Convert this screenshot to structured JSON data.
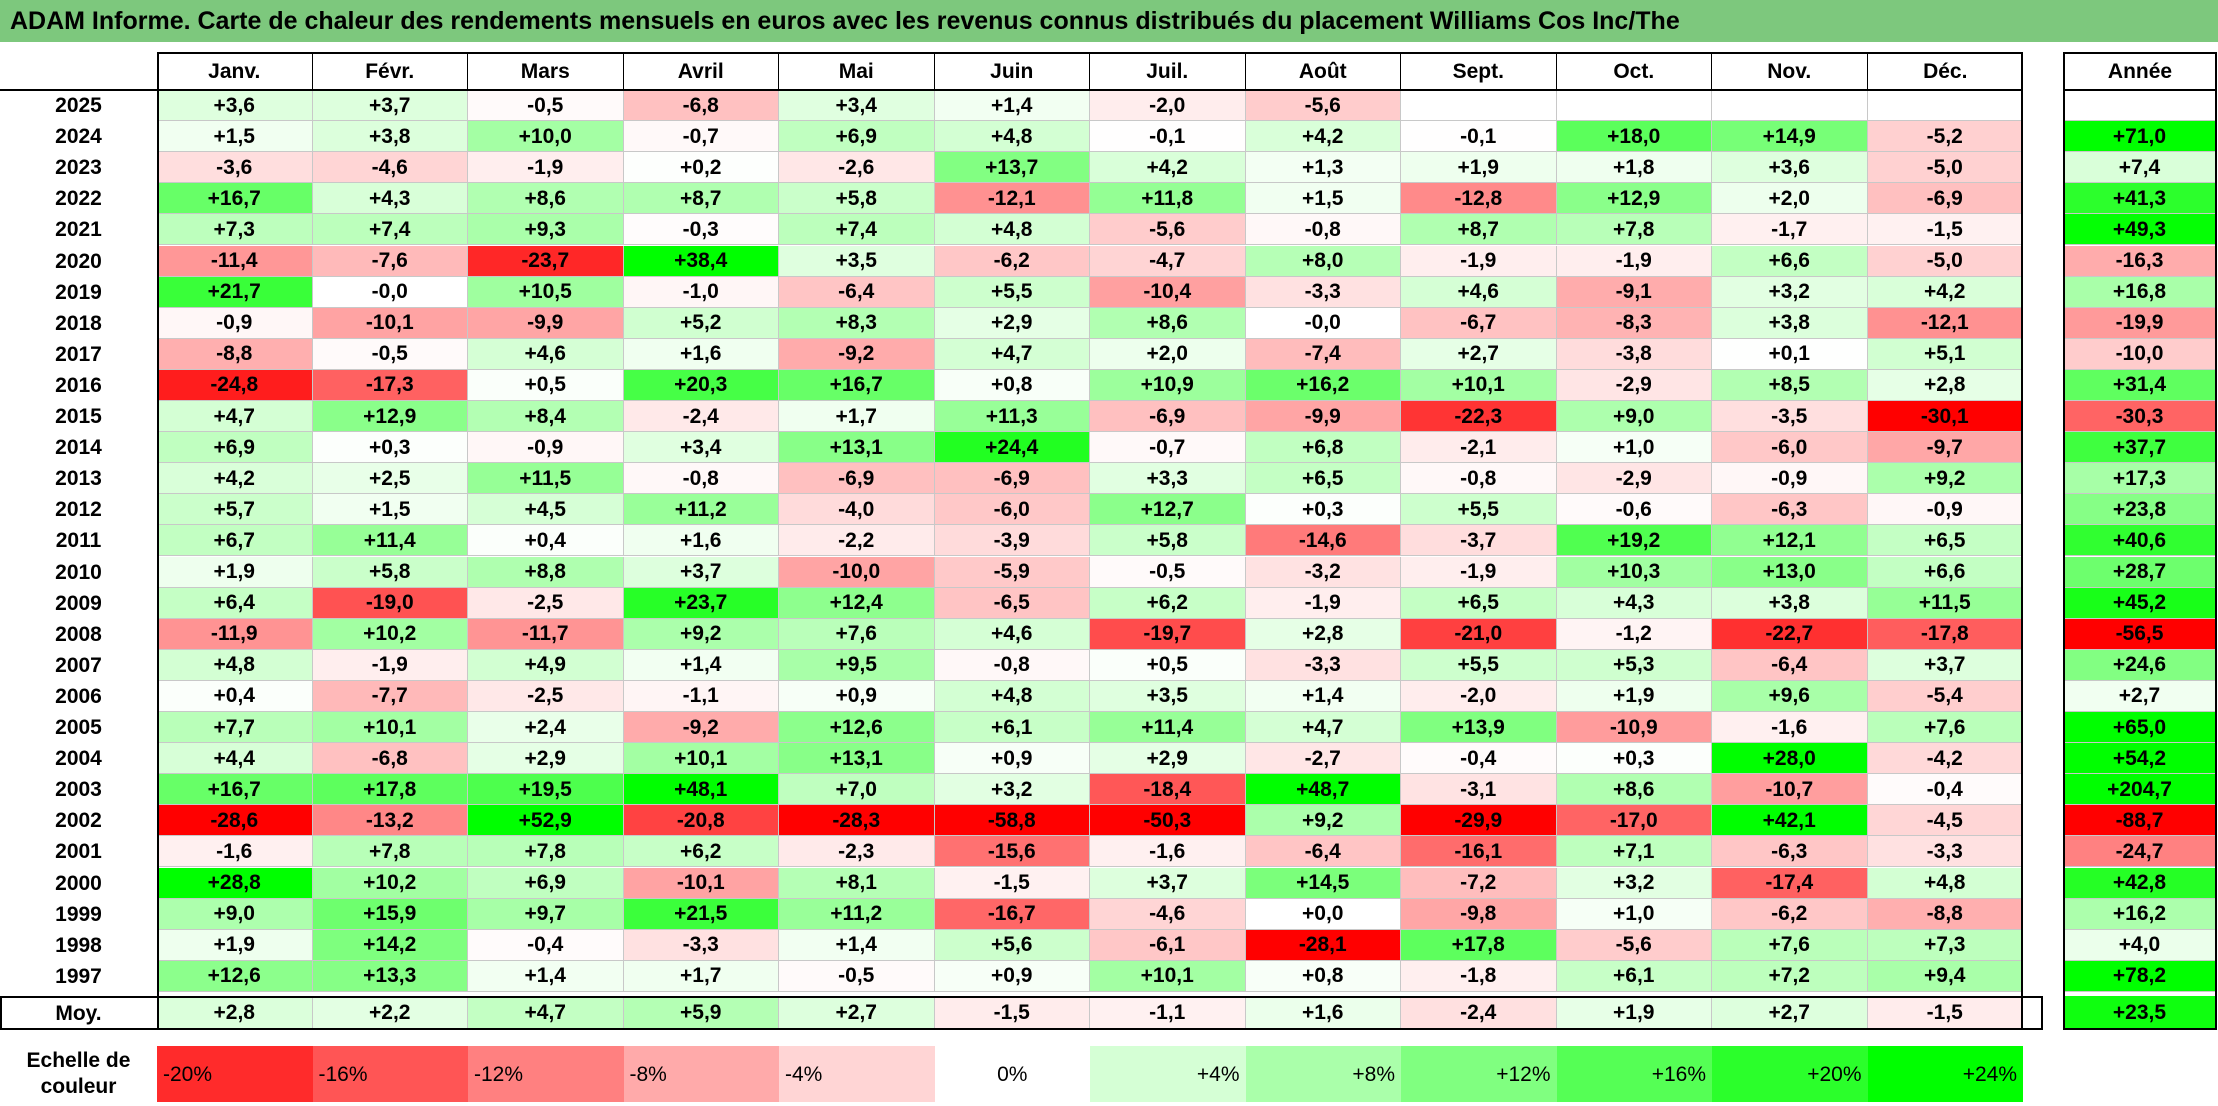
{
  "title": "ADAM Informe. Carte de chaleur des rendements mensuels en euros avec les revenus connus distribués du placement Williams Cos Inc/The",
  "colors": {
    "title_bg": "#7dc87d",
    "red": "#ff0000",
    "green": "#00ff00",
    "white": "#ffffff"
  },
  "chart_data": {
    "type": "heatmap",
    "columns": [
      "Janv.",
      "Févr.",
      "Mars",
      "Avril",
      "Mai",
      "Juin",
      "Juil.",
      "Août",
      "Sept.",
      "Oct.",
      "Nov.",
      "Déc."
    ],
    "year_header": "Année",
    "rows": [
      {
        "year": "2025",
        "values": [
          "+3,6",
          "+3,7",
          "-0,5",
          "-6,8",
          "+3,4",
          "+1,4",
          "-2,0",
          "-5,6",
          "",
          "",
          "",
          ""
        ],
        "annual": ""
      },
      {
        "year": "2024",
        "values": [
          "+1,5",
          "+3,8",
          "+10,0",
          "-0,7",
          "+6,9",
          "+4,8",
          "-0,1",
          "+4,2",
          "-0,1",
          "+18,0",
          "+14,9",
          "-5,2"
        ],
        "annual": "+71,0"
      },
      {
        "year": "2023",
        "values": [
          "-3,6",
          "-4,6",
          "-1,9",
          "+0,2",
          "-2,6",
          "+13,7",
          "+4,2",
          "+1,3",
          "+1,9",
          "+1,8",
          "+3,6",
          "-5,0"
        ],
        "annual": "+7,4"
      },
      {
        "year": "2022",
        "values": [
          "+16,7",
          "+4,3",
          "+8,6",
          "+8,7",
          "+5,8",
          "-12,1",
          "+11,8",
          "+1,5",
          "-12,8",
          "+12,9",
          "+2,0",
          "-6,9"
        ],
        "annual": "+41,3"
      },
      {
        "year": "2021",
        "values": [
          "+7,3",
          "+7,4",
          "+9,3",
          "-0,3",
          "+7,4",
          "+4,8",
          "-5,6",
          "-0,8",
          "+8,7",
          "+7,8",
          "-1,7",
          "-1,5"
        ],
        "annual": "+49,3"
      },
      {
        "year": "2020",
        "values": [
          "-11,4",
          "-7,6",
          "-23,7",
          "+38,4",
          "+3,5",
          "-6,2",
          "-4,7",
          "+8,0",
          "-1,9",
          "-1,9",
          "+6,6",
          "-5,0"
        ],
        "annual": "-16,3"
      },
      {
        "year": "2019",
        "values": [
          "+21,7",
          "-0,0",
          "+10,5",
          "-1,0",
          "-6,4",
          "+5,5",
          "-10,4",
          "-3,3",
          "+4,6",
          "-9,1",
          "+3,2",
          "+4,2"
        ],
        "annual": "+16,8"
      },
      {
        "year": "2018",
        "values": [
          "-0,9",
          "-10,1",
          "-9,9",
          "+5,2",
          "+8,3",
          "+2,9",
          "+8,6",
          "-0,0",
          "-6,7",
          "-8,3",
          "+3,8",
          "-12,1"
        ],
        "annual": "-19,9"
      },
      {
        "year": "2017",
        "values": [
          "-8,8",
          "-0,5",
          "+4,6",
          "+1,6",
          "-9,2",
          "+4,7",
          "+2,0",
          "-7,4",
          "+2,7",
          "-3,8",
          "+0,1",
          "+5,1"
        ],
        "annual": "-10,0"
      },
      {
        "year": "2016",
        "values": [
          "-24,8",
          "-17,3",
          "+0,5",
          "+20,3",
          "+16,7",
          "+0,8",
          "+10,9",
          "+16,2",
          "+10,1",
          "-2,9",
          "+8,5",
          "+2,8"
        ],
        "annual": "+31,4"
      },
      {
        "year": "2015",
        "values": [
          "+4,7",
          "+12,9",
          "+8,4",
          "-2,4",
          "+1,7",
          "+11,3",
          "-6,9",
          "-9,9",
          "-22,3",
          "+9,0",
          "-3,5",
          "-30,1"
        ],
        "annual": "-30,3"
      },
      {
        "year": "2014",
        "values": [
          "+6,9",
          "+0,3",
          "-0,9",
          "+3,4",
          "+13,1",
          "+24,4",
          "-0,7",
          "+6,8",
          "-2,1",
          "+1,0",
          "-6,0",
          "-9,7"
        ],
        "annual": "+37,7"
      },
      {
        "year": "2013",
        "values": [
          "+4,2",
          "+2,5",
          "+11,5",
          "-0,8",
          "-6,9",
          "-6,9",
          "+3,3",
          "+6,5",
          "-0,8",
          "-2,9",
          "-0,9",
          "+9,2"
        ],
        "annual": "+17,3"
      },
      {
        "year": "2012",
        "values": [
          "+5,7",
          "+1,5",
          "+4,5",
          "+11,2",
          "-4,0",
          "-6,0",
          "+12,7",
          "+0,3",
          "+5,5",
          "-0,6",
          "-6,3",
          "-0,9"
        ],
        "annual": "+23,8"
      },
      {
        "year": "2011",
        "values": [
          "+6,7",
          "+11,4",
          "+0,4",
          "+1,6",
          "-2,2",
          "-3,9",
          "+5,8",
          "-14,6",
          "-3,7",
          "+19,2",
          "+12,1",
          "+6,5"
        ],
        "annual": "+40,6"
      },
      {
        "year": "2010",
        "values": [
          "+1,9",
          "+5,8",
          "+8,8",
          "+3,7",
          "-10,0",
          "-5,9",
          "-0,5",
          "-3,2",
          "-1,9",
          "+10,3",
          "+13,0",
          "+6,6"
        ],
        "annual": "+28,7"
      },
      {
        "year": "2009",
        "values": [
          "+6,4",
          "-19,0",
          "-2,5",
          "+23,7",
          "+12,4",
          "-6,5",
          "+6,2",
          "-1,9",
          "+6,5",
          "+4,3",
          "+3,8",
          "+11,5"
        ],
        "annual": "+45,2"
      },
      {
        "year": "2008",
        "values": [
          "-11,9",
          "+10,2",
          "-11,7",
          "+9,2",
          "+7,6",
          "+4,6",
          "-19,7",
          "+2,8",
          "-21,0",
          "-1,2",
          "-22,7",
          "-17,8"
        ],
        "annual": "-56,5"
      },
      {
        "year": "2007",
        "values": [
          "+4,8",
          "-1,9",
          "+4,9",
          "+1,4",
          "+9,5",
          "-0,8",
          "+0,5",
          "-3,3",
          "+5,5",
          "+5,3",
          "-6,4",
          "+3,7"
        ],
        "annual": "+24,6"
      },
      {
        "year": "2006",
        "values": [
          "+0,4",
          "-7,7",
          "-2,5",
          "-1,1",
          "+0,9",
          "+4,8",
          "+3,5",
          "+1,4",
          "-2,0",
          "+1,9",
          "+9,6",
          "-5,4"
        ],
        "annual": "+2,7"
      },
      {
        "year": "2005",
        "values": [
          "+7,7",
          "+10,1",
          "+2,4",
          "-9,2",
          "+12,6",
          "+6,1",
          "+11,4",
          "+4,7",
          "+13,9",
          "-10,9",
          "-1,6",
          "+7,6"
        ],
        "annual": "+65,0"
      },
      {
        "year": "2004",
        "values": [
          "+4,4",
          "-6,8",
          "+2,9",
          "+10,1",
          "+13,1",
          "+0,9",
          "+2,9",
          "-2,7",
          "-0,4",
          "+0,3",
          "+28,0",
          "-4,2"
        ],
        "annual": "+54,2"
      },
      {
        "year": "2003",
        "values": [
          "+16,7",
          "+17,8",
          "+19,5",
          "+48,1",
          "+7,0",
          "+3,2",
          "-18,4",
          "+48,7",
          "-3,1",
          "+8,6",
          "-10,7",
          "-0,4"
        ],
        "annual": "+204,7"
      },
      {
        "year": "2002",
        "values": [
          "-28,6",
          "-13,2",
          "+52,9",
          "-20,8",
          "-28,3",
          "-58,8",
          "-50,3",
          "+9,2",
          "-29,9",
          "-17,0",
          "+42,1",
          "-4,5"
        ],
        "annual": "-88,7"
      },
      {
        "year": "2001",
        "values": [
          "-1,6",
          "+7,8",
          "+7,8",
          "+6,2",
          "-2,3",
          "-15,6",
          "-1,6",
          "-6,4",
          "-16,1",
          "+7,1",
          "-6,3",
          "-3,3"
        ],
        "annual": "-24,7"
      },
      {
        "year": "2000",
        "values": [
          "+28,8",
          "+10,2",
          "+6,9",
          "-10,1",
          "+8,1",
          "-1,5",
          "+3,7",
          "+14,5",
          "-7,2",
          "+3,2",
          "-17,4",
          "+4,8"
        ],
        "annual": "+42,8"
      },
      {
        "year": "1999",
        "values": [
          "+9,0",
          "+15,9",
          "+9,7",
          "+21,5",
          "+11,2",
          "-16,7",
          "-4,6",
          "+0,0",
          "-9,8",
          "+1,0",
          "-6,2",
          "-8,8"
        ],
        "annual": "+16,2"
      },
      {
        "year": "1998",
        "values": [
          "+1,9",
          "+14,2",
          "-0,4",
          "-3,3",
          "+1,4",
          "+5,6",
          "-6,1",
          "-28,1",
          "+17,8",
          "-5,6",
          "+7,6",
          "+7,3"
        ],
        "annual": "+4,0"
      },
      {
        "year": "1997",
        "values": [
          "+12,6",
          "+13,3",
          "+1,4",
          "+1,7",
          "-0,5",
          "+0,9",
          "+10,1",
          "+0,8",
          "-1,8",
          "+6,1",
          "+7,2",
          "+9,4"
        ],
        "annual": "+78,2"
      }
    ],
    "average": {
      "label": "Moy.",
      "values": [
        "+2,8",
        "+2,2",
        "+4,7",
        "+5,9",
        "+2,7",
        "-1,5",
        "-1,1",
        "+1,6",
        "-2,4",
        "+1,9",
        "+2,7",
        "-1,5"
      ],
      "annual": "+23,5"
    },
    "scale": {
      "label": "Echelle de couleur",
      "steps": [
        "-20%",
        "-16%",
        "-12%",
        "-8%",
        "-4%",
        "0%",
        "+4%",
        "+8%",
        "+12%",
        "+16%",
        "+20%",
        "+24%"
      ],
      "numeric": [
        -20,
        -16,
        -12,
        -8,
        -4,
        0,
        4,
        8,
        12,
        16,
        20,
        24
      ]
    }
  }
}
